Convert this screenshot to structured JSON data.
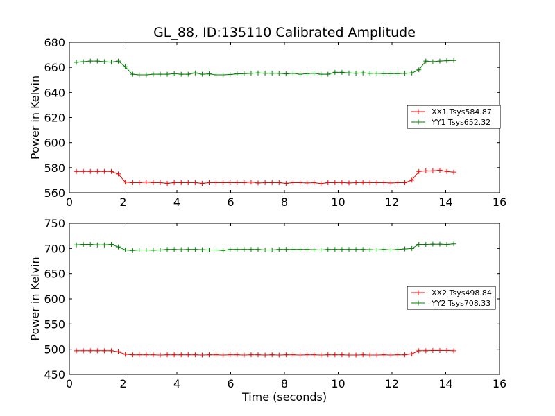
{
  "title": "GL_88, ID:135110 Calibrated Amplitude",
  "xlabel": "Time (seconds)",
  "chart_data": [
    {
      "type": "line",
      "title": "GL_88, ID:135110 Calibrated Amplitude",
      "xlabel": "",
      "ylabel": "Power in Kelvin",
      "xlim": [
        0,
        16
      ],
      "ylim": [
        560,
        680
      ],
      "xticks": [
        0,
        2,
        4,
        6,
        8,
        10,
        12,
        14,
        16
      ],
      "yticks": [
        560,
        580,
        600,
        620,
        640,
        660,
        680
      ],
      "grid": false,
      "legend_position": "center-right",
      "x": [
        0.26,
        0.52,
        0.78,
        1.04,
        1.3,
        1.56,
        1.82,
        2.08,
        2.34,
        2.6,
        2.86,
        3.12,
        3.38,
        3.64,
        3.9,
        4.16,
        4.42,
        4.68,
        4.94,
        5.2,
        5.46,
        5.72,
        5.98,
        6.24,
        6.5,
        6.76,
        7.02,
        7.28,
        7.54,
        7.8,
        8.06,
        8.32,
        8.58,
        8.84,
        9.1,
        9.36,
        9.62,
        9.88,
        10.14,
        10.4,
        10.66,
        10.92,
        11.18,
        11.44,
        11.7,
        11.96,
        12.22,
        12.48,
        12.74,
        13.0,
        13.26,
        13.52,
        13.78,
        14.04,
        14.3
      ],
      "series": [
        {
          "name": "XX1 Tsys584.87",
          "color": "#ff0000",
          "values": [
            577,
            577,
            577,
            577,
            577,
            577,
            575,
            568.5,
            568,
            568,
            568.5,
            568,
            568,
            567.5,
            568,
            568,
            568,
            568,
            567.5,
            568,
            568,
            568,
            568,
            568,
            568,
            568.5,
            567.8,
            568,
            568,
            568,
            567.5,
            568,
            568,
            567.8,
            568,
            567.3,
            568,
            568,
            568.2,
            567.8,
            568,
            568.2,
            568,
            568,
            568,
            567.8,
            568,
            568,
            570,
            577,
            577.5,
            577.5,
            578,
            577,
            576.5
          ]
        },
        {
          "name": "YY1 Tsys652.32",
          "color": "#008000",
          "values": [
            664,
            664.5,
            665,
            665,
            664.5,
            664.2,
            665,
            660.5,
            654.5,
            654,
            654,
            654.5,
            654.5,
            654.5,
            655,
            654.5,
            654.5,
            655.5,
            654.5,
            654.8,
            654,
            654,
            654.3,
            654.8,
            655,
            655.3,
            655.5,
            655.3,
            655.3,
            655.2,
            654.8,
            655.2,
            654.5,
            655,
            655.3,
            654.5,
            654.5,
            656,
            656,
            655.5,
            655.3,
            655.5,
            655.2,
            655.3,
            655,
            655,
            655,
            655.2,
            655.5,
            658,
            665,
            664.5,
            665,
            665.3,
            665.5
          ]
        }
      ]
    },
    {
      "type": "line",
      "title": "",
      "xlabel": "Time (seconds)",
      "ylabel": "Power in Kelvin",
      "xlim": [
        0,
        16
      ],
      "ylim": [
        450,
        750
      ],
      "xticks": [
        0,
        2,
        4,
        6,
        8,
        10,
        12,
        14,
        16
      ],
      "yticks": [
        450,
        500,
        550,
        600,
        650,
        700,
        750
      ],
      "grid": false,
      "legend_position": "center-right",
      "x": [
        0.26,
        0.52,
        0.78,
        1.04,
        1.3,
        1.56,
        1.82,
        2.08,
        2.34,
        2.6,
        2.86,
        3.12,
        3.38,
        3.64,
        3.9,
        4.16,
        4.42,
        4.68,
        4.94,
        5.2,
        5.46,
        5.72,
        5.98,
        6.24,
        6.5,
        6.76,
        7.02,
        7.28,
        7.54,
        7.8,
        8.06,
        8.32,
        8.58,
        8.84,
        9.1,
        9.36,
        9.62,
        9.88,
        10.14,
        10.4,
        10.66,
        10.92,
        11.18,
        11.44,
        11.7,
        11.96,
        12.22,
        12.48,
        12.74,
        13.0,
        13.26,
        13.52,
        13.78,
        14.04,
        14.3
      ],
      "series": [
        {
          "name": "XX2 Tsys498.84",
          "color": "#ff0000",
          "values": [
            497,
            497,
            497,
            497,
            497,
            497,
            495,
            490,
            489,
            489,
            489,
            489,
            488.5,
            489,
            489,
            489,
            489,
            489,
            488.5,
            489,
            489,
            488.5,
            489,
            489,
            488.5,
            489,
            489,
            488.5,
            489,
            488.5,
            489,
            489,
            488.5,
            489,
            489,
            488.5,
            489,
            489,
            489,
            488.5,
            488.5,
            489,
            488.5,
            488.5,
            489,
            488.5,
            489,
            489,
            491,
            497,
            497,
            497.5,
            497.5,
            497.5,
            497
          ]
        },
        {
          "name": "YY2 Tsys708.33",
          "color": "#008000",
          "values": [
            707,
            708,
            708,
            707,
            707,
            708,
            703,
            697,
            696,
            697,
            697,
            696.5,
            697,
            698,
            698,
            697.5,
            698,
            698,
            697.5,
            697,
            697,
            696,
            698,
            698,
            698,
            698,
            698,
            697,
            697,
            698,
            698,
            698,
            698,
            698,
            697.5,
            697,
            698,
            698,
            698,
            698,
            698,
            698,
            697.5,
            697,
            698,
            697,
            698,
            699,
            700,
            708,
            708,
            708.5,
            708.5,
            708,
            709
          ]
        }
      ]
    }
  ]
}
